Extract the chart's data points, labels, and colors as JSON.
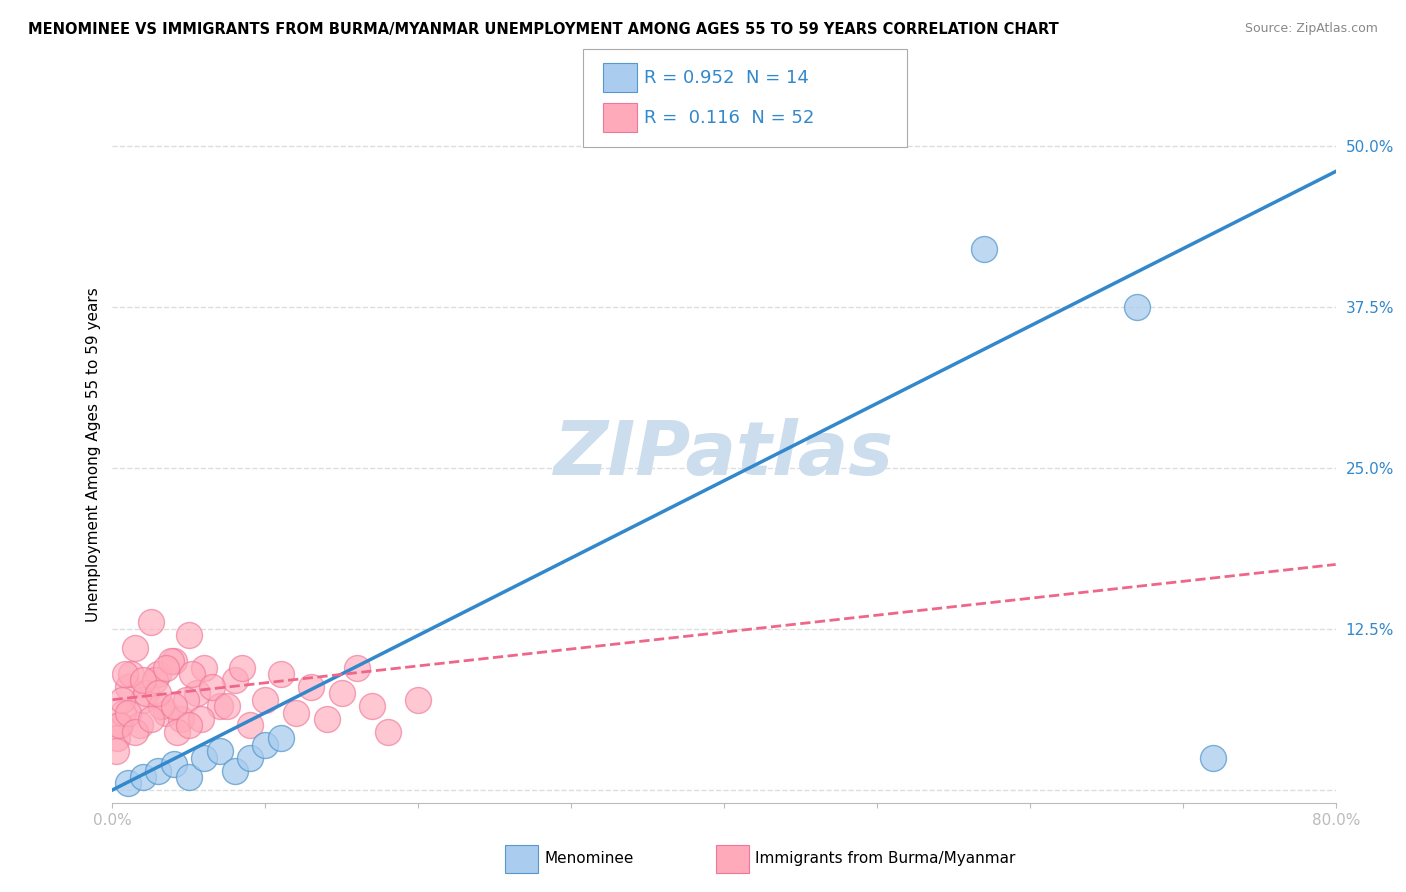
{
  "title": "MENOMINEE VS IMMIGRANTS FROM BURMA/MYANMAR UNEMPLOYMENT AMONG AGES 55 TO 59 YEARS CORRELATION CHART",
  "source": "Source: ZipAtlas.com",
  "ylabel": "Unemployment Among Ages 55 to 59 years",
  "ytick_values": [
    0,
    12.5,
    25.0,
    37.5,
    50.0
  ],
  "xlim": [
    0,
    80
  ],
  "ylim": [
    -1,
    53
  ],
  "r1_value": "0.952",
  "n1": 14,
  "r2_value": "0.116",
  "n2": 52,
  "color_blue": "#AACCEE",
  "color_blue_dark": "#5599CC",
  "color_blue_line": "#3388CC",
  "color_pink": "#FFAABB",
  "color_pink_dark": "#EE7799",
  "color_pink_line": "#EE6688",
  "watermark_color": "#CCDDEE",
  "watermark_text": "ZIPatlas",
  "grid_color": "#DDDDDD",
  "grid_style": "--",
  "background_color": "#FFFFFF",
  "blue_scatter_x": [
    1.0,
    2.0,
    3.0,
    4.0,
    5.0,
    6.0,
    7.0,
    8.0,
    9.0,
    10.0,
    11.0,
    57.0,
    67.0,
    72.0
  ],
  "blue_scatter_y": [
    0.5,
    1.0,
    1.5,
    2.0,
    1.0,
    2.5,
    3.0,
    1.5,
    2.5,
    3.5,
    4.0,
    42.0,
    37.5,
    2.5
  ],
  "pink_scatter_x": [
    0.5,
    1.0,
    1.5,
    2.0,
    2.5,
    3.0,
    3.5,
    4.0,
    4.5,
    5.0,
    5.5,
    6.0,
    7.0,
    8.0,
    9.0,
    10.0,
    11.0,
    12.0,
    13.0,
    14.0,
    15.0,
    16.0,
    17.0,
    18.0,
    20.0,
    0.3,
    0.7,
    1.2,
    1.8,
    2.2,
    2.8,
    3.2,
    3.8,
    4.2,
    4.8,
    5.2,
    5.8,
    6.5,
    7.5,
    8.5,
    0.2,
    0.4,
    0.6,
    0.8,
    1.0,
    1.5,
    2.0,
    2.5,
    3.0,
    3.5,
    4.0,
    5.0
  ],
  "pink_scatter_y": [
    5.0,
    8.0,
    11.0,
    7.0,
    13.0,
    9.0,
    6.0,
    10.0,
    5.5,
    12.0,
    7.5,
    9.5,
    6.5,
    8.5,
    5.0,
    7.0,
    9.0,
    6.0,
    8.0,
    5.5,
    7.5,
    9.5,
    6.5,
    4.5,
    7.0,
    4.0,
    6.0,
    9.0,
    5.0,
    7.5,
    8.5,
    6.5,
    10.0,
    4.5,
    7.0,
    9.0,
    5.5,
    8.0,
    6.5,
    9.5,
    3.0,
    5.0,
    7.0,
    9.0,
    6.0,
    4.5,
    8.5,
    5.5,
    7.5,
    9.5,
    6.5,
    5.0
  ],
  "blue_line_x0": 0,
  "blue_line_y0": 0,
  "blue_line_x1": 80,
  "blue_line_y1": 48,
  "pink_line_x0": 0,
  "pink_line_y0": 7.0,
  "pink_line_x1": 80,
  "pink_line_y1": 17.5
}
